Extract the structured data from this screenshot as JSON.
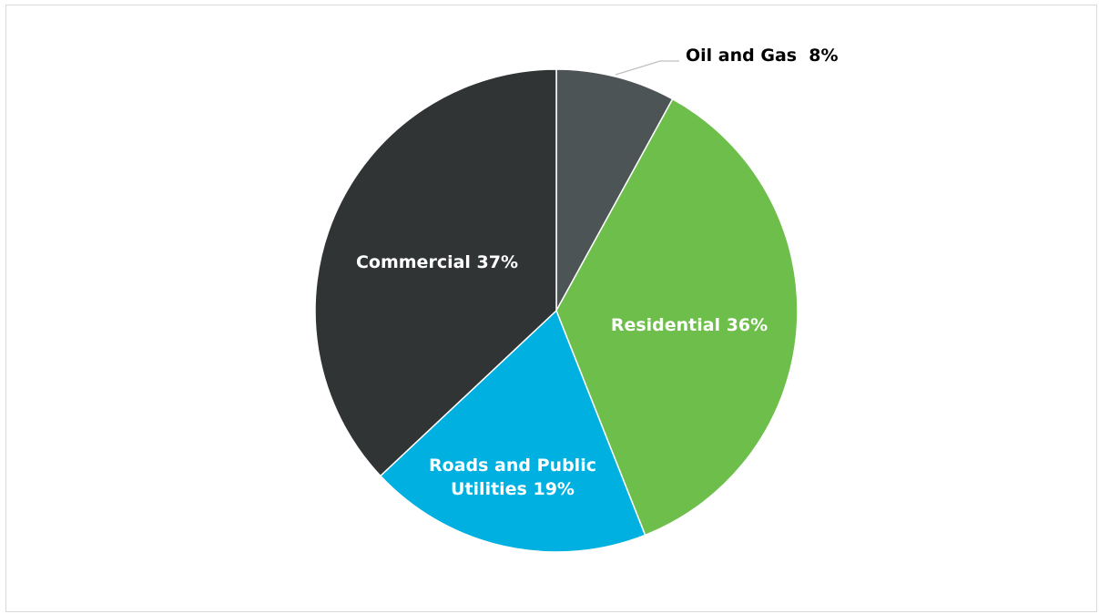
{
  "chart_data": {
    "type": "pie",
    "title": "",
    "slices": [
      {
        "name": "Oil and Gas",
        "value": 8,
        "label": "Oil and Gas  8%",
        "color": "#4d5456",
        "label_color": "#000000"
      },
      {
        "name": "Residential",
        "value": 36,
        "label": "Residential 36%",
        "color": "#6dbe4b",
        "label_color": "#ffffff"
      },
      {
        "name": "Roads and Public Utilities",
        "value": 19,
        "label": "Roads and Public Utilities 19%",
        "label_lines": [
          "Roads and Public",
          "Utilities 19%"
        ],
        "color": "#00b0e0",
        "label_color": "#ffffff"
      },
      {
        "name": "Commercial",
        "value": 37,
        "label": "Commercial 37%",
        "color": "#313435",
        "label_color": "#ffffff"
      }
    ],
    "start_angle_deg": 0,
    "direction": "clockwise",
    "legend": "none"
  }
}
